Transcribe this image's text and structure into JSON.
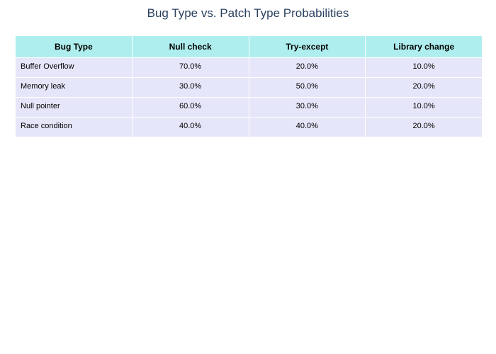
{
  "chart_data": {
    "type": "table",
    "title": "Bug Type vs. Patch Type Probabilities",
    "columns": [
      "Bug Type",
      "Null check",
      "Try-except",
      "Library change"
    ],
    "rows": [
      [
        "Buffer Overflow",
        "70.0%",
        "20.0%",
        "10.0%"
      ],
      [
        "Memory leak",
        "30.0%",
        "50.0%",
        "20.0%"
      ],
      [
        "Null pointer",
        "60.0%",
        "30.0%",
        "10.0%"
      ],
      [
        "Race condition",
        "40.0%",
        "40.0%",
        "20.0%"
      ]
    ],
    "colors": {
      "header_fill": "#afeeee",
      "cell_fill": "#e6e6fa",
      "title_color": "#2a3f5f"
    }
  }
}
